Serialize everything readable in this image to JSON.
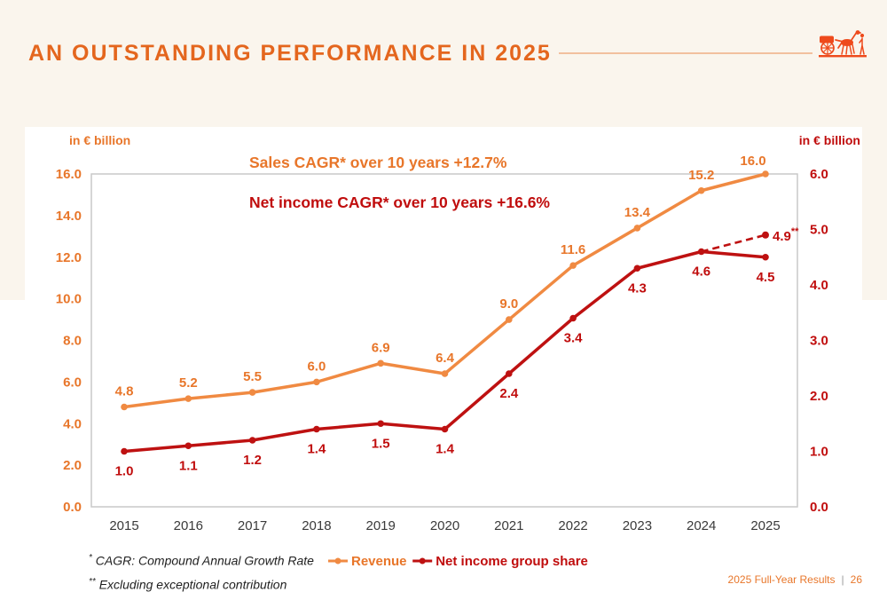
{
  "header": {
    "title": "AN OUTSTANDING PERFORMANCE IN 2025"
  },
  "colors": {
    "background": "#FAF5ED",
    "panel": "#FFFFFF",
    "title_orange": "#E4661E",
    "header_rule": "#F2C09E",
    "logo_orange": "#EE4A1C",
    "revenue_line": "#F08A42",
    "revenue_label": "#E8762A",
    "net_income_line": "#BE1111",
    "net_income_label": "#C00D0D",
    "frame_gray": "#C9C9C9",
    "year_gray": "#3A3A3A"
  },
  "chart_data": {
    "type": "line",
    "title": "",
    "categories": [
      "2015",
      "2016",
      "2017",
      "2018",
      "2019",
      "2020",
      "2021",
      "2022",
      "2023",
      "2024",
      "2025"
    ],
    "left_axis": {
      "label": "in € billion",
      "min": 0,
      "max": 16,
      "step": 2,
      "color": "#E8762A"
    },
    "right_axis": {
      "label": "in € billion",
      "min": 0,
      "max": 6,
      "step": 1,
      "color": "#C00D0D"
    },
    "grid": false,
    "legend_position": "bottom",
    "annotations": [
      {
        "text": "Sales CAGR* over 10 years +12.7%",
        "color": "#E8762A"
      },
      {
        "text": "Net income CAGR* over 10 years +16.6%",
        "color": "#C00D0D"
      }
    ],
    "series": [
      {
        "name": "Revenue",
        "axis": "left",
        "color": "#F08A42",
        "label_color": "#E8762A",
        "label_position": "above",
        "values": [
          4.8,
          5.2,
          5.5,
          6.0,
          6.9,
          6.4,
          9.0,
          11.6,
          13.4,
          15.2,
          16.0
        ],
        "label_offsets": {
          "10": [
            -14,
            3
          ]
        }
      },
      {
        "name": "Net income group share",
        "axis": "right",
        "color": "#BE1111",
        "label_color": "#C00D0D",
        "label_position": "below",
        "values": [
          1.0,
          1.1,
          1.2,
          1.4,
          1.5,
          1.4,
          2.4,
          3.4,
          4.3,
          4.6,
          4.5
        ]
      }
    ],
    "projection": {
      "series": "Net income group share",
      "year": "2025",
      "value": 4.9,
      "label": "4.9",
      "sup": "**",
      "style": "dashed"
    }
  },
  "footnotes": [
    {
      "sup": "*",
      "text": "CAGR: Compound Annual Growth Rate"
    },
    {
      "sup": "**",
      "text": "Excluding exceptional contribution"
    }
  ],
  "footer": {
    "label": "2025 Full-Year Results",
    "divider": "|",
    "page": "26"
  }
}
